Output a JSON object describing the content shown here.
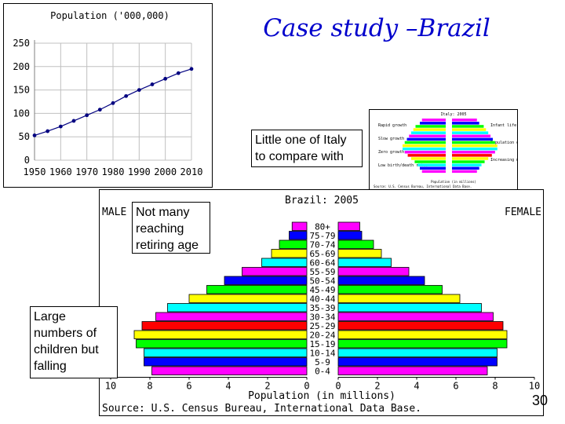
{
  "slide": {
    "title": "Case study –Brazil",
    "page_number": "30",
    "callouts": {
      "italy": "Little one of Italy to compare with",
      "elderly": "Not many reaching retiring age",
      "children": "Large numbers of children but falling"
    },
    "italy_thumbnail": {
      "title": "Italy: 2005",
      "left_labels": [
        "Rapid growth",
        "Slow growth",
        "Zero growth",
        "Low birth/death rates"
      ],
      "right_labels": [
        "Infant life expectancy",
        "Population decline",
        "Increasing mortality"
      ],
      "footer1": "Population (in millions)",
      "footer2": "Source: U.S. Census Bureau, International Data Base."
    }
  },
  "chart_data": [
    {
      "type": "line",
      "title": "Population ('000,000)",
      "x": [
        1950,
        1955,
        1960,
        1965,
        1970,
        1975,
        1980,
        1985,
        1990,
        1995,
        2000,
        2005,
        2010
      ],
      "series": [
        {
          "values": [
            53,
            62,
            72,
            84,
            96,
            108,
            122,
            137,
            150,
            162,
            174,
            186,
            195
          ]
        }
      ],
      "x_ticks": [
        "1950",
        "1960",
        "1970",
        "1980",
        "1990",
        "2000",
        "2010"
      ],
      "y_ticks": [
        "0",
        "50",
        "100",
        "150",
        "200",
        "250"
      ],
      "xlim": [
        1950,
        2010
      ],
      "ylim": [
        0,
        250
      ],
      "grid": true,
      "color": "#000080"
    },
    {
      "type": "bar",
      "orientation": "horizontal",
      "title": "Brazil: 2005",
      "left_label": "MALE",
      "right_label": "FEMALE",
      "xlabel": "Population (in millions)",
      "source": "Source: U.S. Census Bureau, International Data Base.",
      "categories": [
        "80+",
        "75-79",
        "70-74",
        "65-69",
        "60-64",
        "55-59",
        "50-54",
        "45-49",
        "40-44",
        "35-39",
        "30-34",
        "25-29",
        "20-24",
        "15-19",
        "10-14",
        "5-9",
        "0-4"
      ],
      "series": [
        {
          "name": "MALE",
          "values": [
            0.75,
            0.9,
            1.4,
            1.8,
            2.3,
            3.3,
            4.2,
            5.1,
            6.0,
            7.1,
            7.7,
            8.4,
            8.8,
            8.7,
            8.3,
            8.3,
            7.9
          ]
        },
        {
          "name": "FEMALE",
          "values": [
            1.1,
            1.2,
            1.8,
            2.2,
            2.7,
            3.6,
            4.4,
            5.3,
            6.2,
            7.3,
            7.9,
            8.4,
            8.6,
            8.6,
            8.1,
            8.1,
            7.6
          ]
        }
      ],
      "bar_colors": [
        "#ff00ff",
        "#0000ff",
        "#00ff00",
        "#ffff00",
        "#00ffff",
        "#ff00ff",
        "#0000ff",
        "#00ff00",
        "#ffff00",
        "#00ffff",
        "#ff00ff",
        "#ff0000",
        "#ffff00",
        "#00ff00",
        "#00ffff",
        "#0000ff",
        "#ff00ff"
      ],
      "x_ticks_left": [
        "10",
        "8",
        "6",
        "4",
        "2",
        "0"
      ],
      "x_ticks_right": [
        "0",
        "2",
        "4",
        "6",
        "8",
        "10"
      ],
      "xlim": [
        0,
        10
      ]
    }
  ]
}
